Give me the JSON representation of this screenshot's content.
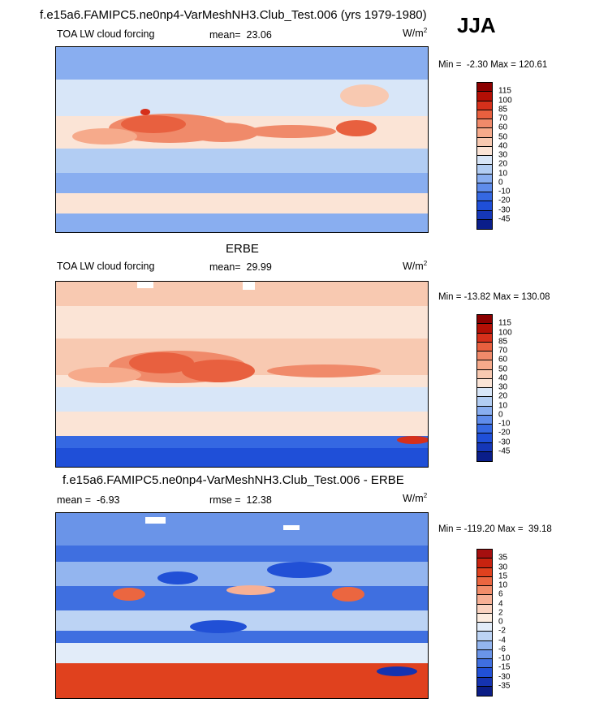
{
  "season": "JJA",
  "colors": {
    "ocean_base": "#cfe0f6",
    "land_line": "#000000",
    "warm": "#e8603f",
    "warm_light": "#f6c4ab",
    "cool": "#6a94e8",
    "cool_dark": "#1f4fd8",
    "deep": "#1537b8"
  },
  "icons": [
    "world-map-icon",
    "colorbar-icon"
  ],
  "chart_data": [
    {
      "type": "heatmap",
      "name": "model",
      "title": "f.e15a6.FAMIPC5.ne0np4-VarMeshNH3.Club_Test.006 (yrs 1979-1980)",
      "variable": "TOA LW cloud forcing",
      "mean_label": "mean=",
      "mean": "23.06",
      "units": "W/m",
      "units_exp": "2",
      "min_label": "Min =",
      "min": "-2.30",
      "max_label": "Max =",
      "max": "120.61",
      "colorbar": {
        "levels": [
          "115",
          "100",
          "85",
          "70",
          "60",
          "50",
          "40",
          "30",
          "20",
          "10",
          "0",
          "-10",
          "-20",
          "-30",
          "-45"
        ],
        "colors": [
          "#8b0000",
          "#b30f05",
          "#d6301b",
          "#e8603f",
          "#f08a6a",
          "#f6aa8b",
          "#f8c9b1",
          "#fbe4d6",
          "#d8e6f8",
          "#b2cdf3",
          "#89aef0",
          "#5f8ceb",
          "#3568e2",
          "#1f4fd8",
          "#1537b8",
          "#0a1e8a"
        ]
      }
    },
    {
      "type": "heatmap",
      "name": "observations",
      "title": "ERBE",
      "variable": "TOA LW cloud forcing",
      "mean_label": "mean=",
      "mean": "29.99",
      "units": "W/m",
      "units_exp": "2",
      "min_label": "Min =",
      "min": "-13.82",
      "max_label": "Max =",
      "max": "130.08",
      "colorbar": {
        "levels": [
          "115",
          "100",
          "85",
          "70",
          "60",
          "50",
          "40",
          "30",
          "20",
          "10",
          "0",
          "-10",
          "-20",
          "-30",
          "-45"
        ],
        "colors": [
          "#8b0000",
          "#b30f05",
          "#d6301b",
          "#e8603f",
          "#f08a6a",
          "#f6aa8b",
          "#f8c9b1",
          "#fbe4d6",
          "#d8e6f8",
          "#b2cdf3",
          "#89aef0",
          "#5f8ceb",
          "#3568e2",
          "#1f4fd8",
          "#1537b8",
          "#0a1e8a"
        ]
      }
    },
    {
      "type": "heatmap",
      "name": "difference",
      "title": "f.e15a6.FAMIPC5.ne0np4-VarMeshNH3.Club_Test.006 - ERBE",
      "mean_label": "mean =",
      "mean": "-6.93",
      "rmse_label": "rmse =",
      "rmse": "12.38",
      "units": "W/m",
      "units_exp": "2",
      "min_label": "Min =",
      "min": "-119.20",
      "max_label": "Max =",
      "max": "39.18",
      "colorbar": {
        "levels": [
          "35",
          "30",
          "15",
          "10",
          "6",
          "4",
          "2",
          "0",
          "-2",
          "-4",
          "-6",
          "-10",
          "-15",
          "-30",
          "-35"
        ],
        "colors": [
          "#a50f0f",
          "#c8230f",
          "#e0411e",
          "#eb6640",
          "#f28d6a",
          "#f7b095",
          "#fad3c0",
          "#fcecdf",
          "#e2ecf9",
          "#bcd3f4",
          "#93b5ef",
          "#6a94e8",
          "#3f6fe0",
          "#2150d6",
          "#1533b0",
          "#0b1d86"
        ]
      }
    }
  ]
}
